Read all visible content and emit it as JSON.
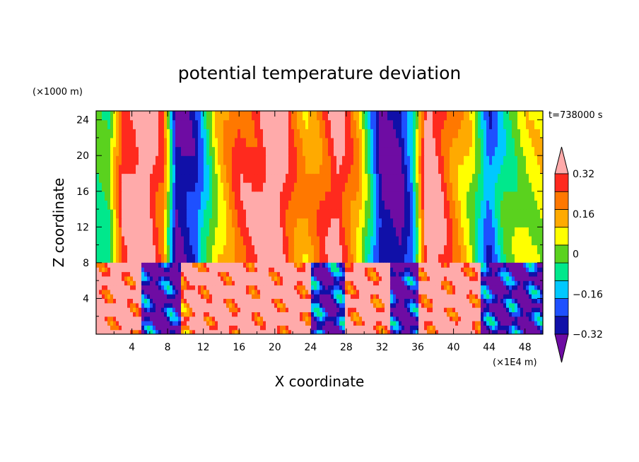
{
  "chart_data": {
    "type": "heatmap",
    "title": "potential temperature deviation",
    "xlabel": "X coordinate",
    "ylabel": "Z coordinate",
    "x_units": "(×1E4 m)",
    "y_units": "(×1000 m)",
    "time_label": "t=738000 s",
    "xlim": [
      0,
      50
    ],
    "ylim": [
      0,
      25
    ],
    "x_ticks": [
      "4",
      "8",
      "12",
      "16",
      "20",
      "24",
      "28",
      "32",
      "36",
      "40",
      "44",
      "48"
    ],
    "x_tick_values": [
      4,
      8,
      12,
      16,
      20,
      24,
      28,
      32,
      36,
      40,
      44,
      48
    ],
    "y_ticks": [
      "4",
      "8",
      "12",
      "16",
      "20",
      "24"
    ],
    "y_tick_values": [
      4,
      8,
      12,
      16,
      20,
      24
    ],
    "colorbar": {
      "labels": [
        "0.32",
        "0.16",
        "0",
        "−0.16",
        "−0.32"
      ],
      "label_levels": [
        0.32,
        0.16,
        0,
        -0.16,
        -0.32
      ],
      "levels": [
        -0.4,
        -0.32,
        -0.24,
        -0.16,
        -0.08,
        0,
        0.08,
        0.16,
        0.24,
        0.32,
        0.4
      ],
      "colors": [
        "#6e0ca3",
        "#1010a8",
        "#1e50ff",
        "#00c8ff",
        "#00e88c",
        "#5ad21e",
        "#ffff00",
        "#ffaa00",
        "#ff7800",
        "#ff2a1e",
        "#ffaaaa"
      ]
    },
    "upper_layer_columns": {
      "z_range": [
        8,
        25
      ],
      "x": [
        0,
        1.5,
        3,
        5.5,
        7.5,
        9,
        11,
        13.5,
        16,
        18,
        20,
        22,
        23.5,
        25,
        27,
        29.5,
        32,
        34,
        35.5,
        37,
        38.5,
        40,
        42,
        44,
        45.5,
        48,
        50
      ],
      "values": [
        -0.1,
        -0.08,
        0.3,
        0.42,
        0.22,
        -0.42,
        -0.34,
        0.04,
        0.26,
        0.3,
        0.45,
        0.22,
        0.12,
        0.2,
        0.36,
        0.1,
        -0.42,
        -0.42,
        -0.2,
        0.42,
        0.32,
        0.18,
        0.02,
        -0.3,
        -0.12,
        0.02,
        0.04
      ]
    },
    "lower_layer_pattern": {
      "z_range": [
        0,
        8
      ],
      "regions": [
        {
          "x": [
            0,
            5
          ],
          "level": 0.42
        },
        {
          "x": [
            5,
            9.5
          ],
          "level": -0.42
        },
        {
          "x": [
            9.5,
            11
          ],
          "level": 0.3
        },
        {
          "x": [
            11,
            24
          ],
          "level": 0.42
        },
        {
          "x": [
            24,
            28
          ],
          "level": -0.38
        },
        {
          "x": [
            28,
            33
          ],
          "level": 0.4
        },
        {
          "x": [
            33,
            36
          ],
          "level": -0.42
        },
        {
          "x": [
            36,
            43
          ],
          "level": 0.42
        },
        {
          "x": [
            43,
            50
          ],
          "level": -0.4
        }
      ]
    }
  }
}
